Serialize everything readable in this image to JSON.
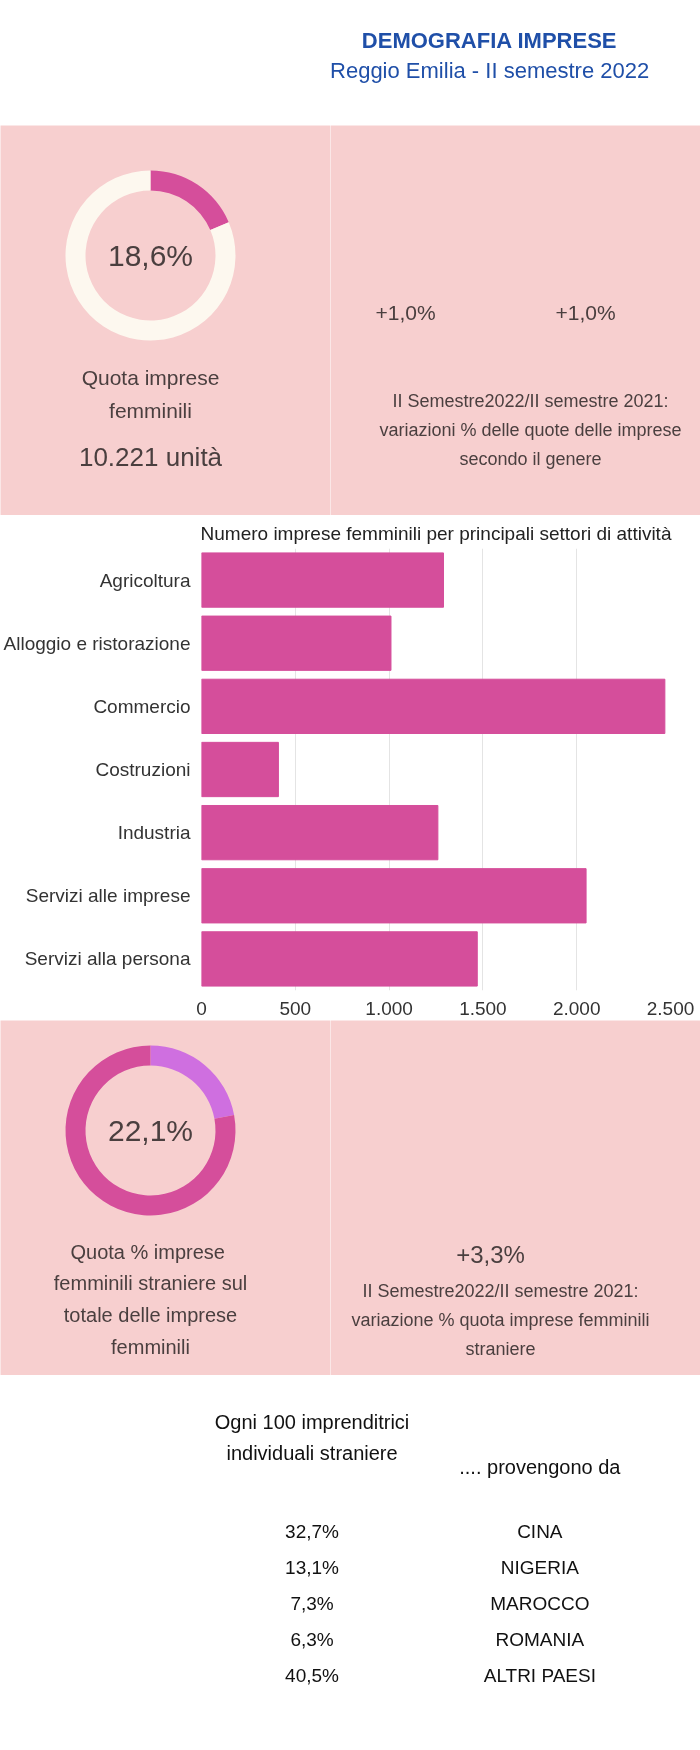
{
  "chart_data": [
    {
      "type": "donut",
      "title": "DEMOGRAFIA IMPRESE",
      "subtitle": "Reggio Emilia - II semestre 2022",
      "categories": [
        null,
        null
      ],
      "values": [
        18.6,
        81.4
      ],
      "colors": [
        "#d54e9b",
        "#fdf8ef"
      ],
      "value_labels": [
        "18,6%",
        null
      ],
      "annotations": [
        "Quota imprese femminili",
        "10.221 unità"
      ]
    },
    {
      "type": "other",
      "annotations": [
        "+1,0%",
        "+1,0%",
        "II Semestre2022/II semestre 2021: variazioni % delle quote delle imprese secondo il genere"
      ]
    },
    {
      "type": "bar",
      "title": "Numero imprese femminili per principali settori di attività",
      "orientation": "horizontal",
      "categories": [
        "Agricoltura",
        "Alloggio e ristorazione",
        "Commercio",
        "Costruzioni",
        "Industria",
        "Servizi alle imprese",
        "Servizi alla persona"
      ],
      "values": [
        1290,
        1010,
        2470,
        410,
        1260,
        2050,
        1470
      ],
      "color": "#d54e9b",
      "xlim": [
        0,
        2500
      ],
      "xticks": [
        0,
        500,
        {
          "value": 1000,
          "label": "1.000"
        },
        {
          "value": 1500,
          "label": "1.500"
        },
        {
          "value": 2000,
          "label": "2.000"
        },
        {
          "value": 2500,
          "label": "2.500"
        }
      ],
      "grid": "x"
    },
    {
      "type": "donut",
      "categories": [
        null,
        null
      ],
      "values": [
        22.1,
        77.9
      ],
      "colors": [
        "#cf6fe0",
        "#d54e9b"
      ],
      "value_labels": [
        "22,1%",
        null
      ],
      "annotations": [
        "Quota  % imprese femminili straniere sul totale delle imprese femminili"
      ]
    },
    {
      "type": "other",
      "annotations": [
        "+3,3%",
        "II Semestre2022/II semestre 2021: variazione % quota imprese femminili straniere"
      ]
    },
    {
      "type": "other",
      "annotations": [
        "Ogni 100 imprenditrici individuali straniere",
        "32,7%",
        "13,1%",
        "7,3%",
        "6,3%",
        "40,5%",
        ".... provengono da",
        "CINA",
        "NIGERIA",
        "MAROCCO",
        "ROMANIA",
        "ALTRI PAESI"
      ]
    }
  ]
}
